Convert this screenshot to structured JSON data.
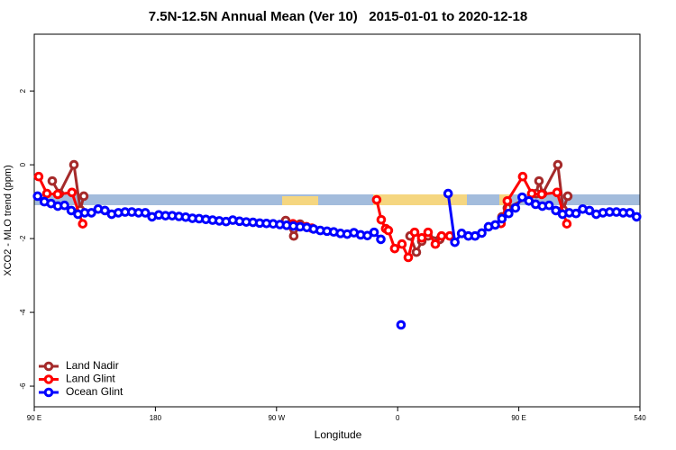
{
  "chart_data": {
    "type": "line",
    "title": "7.5N-12.5N Annual Mean (Ver 10)   2015-01-01 to 2020-12-18",
    "x_label": "Longitude",
    "y_label": "XCO2 - MLO trend (ppm)",
    "xlim": [
      90,
      540
    ],
    "ylim": [
      -6.56,
      3.54
    ],
    "xticks": [
      {
        "value": 90,
        "label": "90 E"
      },
      180,
      {
        "value": 270,
        "label": "90 W"
      },
      {
        "value": 360,
        "label": "0"
      },
      {
        "value": 450,
        "label": "90 E"
      },
      540
    ],
    "yticks": [
      -6,
      -4,
      -2,
      0,
      2
    ],
    "legend": "bottom-left",
    "series": [
      {
        "name": "Land Nadir",
        "color": "#a52a2a",
        "x": [
          103.4,
          108.7,
          119.5,
          124.2,
          126.8,
          null,
          276.8,
          282.8,
          287.5,
          null,
          369.2,
          373.9,
          377.9,
          382.6,
          391.3,
          null,
          437.5,
          441.5,
          463,
          465,
          467.7,
          479,
          483,
          486.4
        ],
        "values": [
          -0.44,
          -0.78,
          0.0,
          -1.22,
          -0.85,
          null,
          -1.51,
          -1.93,
          -1.61,
          null,
          -1.93,
          -2.37,
          -2.07,
          -1.93,
          -2.02,
          null,
          -1.41,
          -1.17,
          -0.78,
          -0.44,
          -0.78,
          0.0,
          -1.22,
          -0.85
        ]
      },
      {
        "name": "Land Glint",
        "color": "#ff0000",
        "x": [
          93.3,
          99.4,
          107.4,
          118,
          126,
          null,
          282.2,
          286.9,
          292.2,
          296.3,
          null,
          344.4,
          347.8,
          351.1,
          353.1,
          357.8,
          363.2,
          367.9,
          372.6,
          377.9,
          382.6,
          388,
          392.6,
          398.7,
          null,
          436.8,
          441.5,
          452.9,
          459.6,
          467,
          478.4,
          485.7
        ],
        "values": [
          -0.32,
          -0.78,
          -0.8,
          -0.75,
          -1.6,
          null,
          -1.6,
          -1.66,
          -1.68,
          -1.72,
          null,
          -0.95,
          -1.49,
          -1.73,
          -1.78,
          -2.27,
          -2.15,
          -2.51,
          -1.83,
          -1.98,
          -1.83,
          -2.15,
          -1.93,
          -1.93,
          null,
          -1.59,
          -0.98,
          -0.32,
          -0.78,
          -0.8,
          -0.75,
          -1.6
        ]
      },
      {
        "name": "Ocean Glint",
        "color": "#0000ff",
        "x": [
          92.5,
          97.5,
          102.5,
          107.5,
          112.5,
          117.5,
          122.5,
          127.5,
          132.5,
          137.5,
          142.5,
          147.5,
          152.5,
          157.5,
          162.5,
          167.5,
          172.5,
          177.5,
          182.5,
          187.5,
          192.5,
          197.5,
          202.5,
          207.5,
          212.5,
          217.5,
          222.5,
          227.5,
          232.5,
          237.5,
          242.5,
          247.5,
          252.5,
          257.5,
          262.5,
          267.5,
          272.5,
          277.5,
          282.5,
          287.5,
          292.5,
          297.5,
          302.5,
          307.5,
          312.5,
          317.5,
          322.5,
          327.5,
          332.5,
          337.5,
          342.5,
          347.5,
          null,
          362.5,
          null,
          397.5,
          402.5,
          407.5,
          412.5,
          417.5,
          422.5,
          427.5,
          432.5,
          437.5,
          442.5,
          447.5,
          452.5,
          457.5,
          462.5,
          467.5,
          472.5,
          477.5,
          482.5,
          487.5,
          492.5,
          497.5,
          502.5,
          507.5,
          512.5,
          517.5,
          522.5,
          527.5,
          532.5,
          537.5
        ],
        "values": [
          -0.85,
          -1.0,
          -1.05,
          -1.12,
          -1.1,
          -1.24,
          -1.34,
          -1.3,
          -1.3,
          -1.2,
          -1.24,
          -1.34,
          -1.3,
          -1.28,
          -1.28,
          -1.3,
          -1.3,
          -1.41,
          -1.36,
          -1.38,
          -1.38,
          -1.4,
          -1.42,
          -1.45,
          -1.46,
          -1.48,
          -1.5,
          -1.52,
          -1.54,
          -1.5,
          -1.53,
          -1.55,
          -1.56,
          -1.58,
          -1.59,
          -1.6,
          -1.62,
          -1.64,
          -1.66,
          -1.68,
          -1.7,
          -1.74,
          -1.78,
          -1.8,
          -1.82,
          -1.86,
          -1.88,
          -1.84,
          -1.9,
          -1.92,
          -1.83,
          -2.02,
          null,
          -4.34,
          null,
          -0.78,
          -2.1,
          -1.86,
          -1.93,
          -1.93,
          -1.85,
          -1.68,
          -1.63,
          -1.46,
          -1.32,
          -1.17,
          -0.88,
          -0.98,
          -1.07,
          -1.12,
          -1.1,
          -1.24,
          -1.34,
          -1.3,
          -1.32,
          -1.2,
          -1.24,
          -1.34,
          -1.3,
          -1.28,
          -1.28,
          -1.3,
          -1.3,
          -1.41
        ]
      }
    ]
  }
}
